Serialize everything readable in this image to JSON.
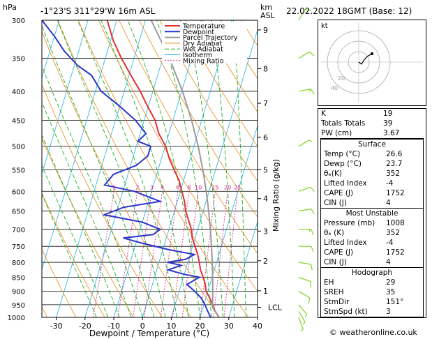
{
  "header": {
    "hpa_label": "hPa",
    "location": "-1°23'S  311°29'W  16m  ASL",
    "km_label": "km",
    "asl_label": "ASL",
    "datetime": "22.02.2022  18GMT  (Base: 12)"
  },
  "chart_data": {
    "type": "line",
    "xlabel": "Dewpoint / Temperature (°C)",
    "ylabel": "hPa",
    "mixing_ratio_label": "Mixing Ratio (g/kg)",
    "xlim": [
      -35,
      40
    ],
    "ylim": [
      1000,
      300
    ],
    "x_ticks": [
      -30,
      -20,
      -10,
      0,
      10,
      20,
      30,
      40
    ],
    "pressure_levels": [
      300,
      350,
      400,
      450,
      500,
      550,
      600,
      650,
      700,
      750,
      800,
      850,
      900,
      950,
      1000
    ],
    "km_ticks": [
      {
        "label": "9",
        "p": 312
      },
      {
        "label": "8",
        "p": 365
      },
      {
        "label": "7",
        "p": 420
      },
      {
        "label": "6",
        "p": 482
      },
      {
        "label": "5",
        "p": 550
      },
      {
        "label": "4",
        "p": 618
      },
      {
        "label": "3",
        "p": 705
      },
      {
        "label": "2",
        "p": 795
      },
      {
        "label": "1",
        "p": 898
      },
      {
        "label": "LCL",
        "p": 960
      }
    ],
    "mixing_ratio_values": [
      "1",
      "2",
      "3",
      "4",
      "6",
      "8",
      "10",
      "15",
      "20",
      "25"
    ],
    "mixing_ratio_g": [
      1,
      2,
      3,
      4,
      6,
      8,
      10,
      15,
      20,
      25
    ],
    "legend": [
      "Temperature",
      "Dewpoint",
      "Parcel Trajectory",
      "Dry Adiabat",
      "Wet Adiabat",
      "Isotherm",
      "Mixing Ratio"
    ],
    "legend_colors": [
      "#e53030",
      "#2a35cc",
      "#9a9a9a",
      "#e8891c",
      "#1fae1f",
      "#20b0e0",
      "#d0208a"
    ],
    "series": [
      {
        "name": "Temperature",
        "color": "#e53030",
        "points": [
          [
            1000,
            26.6
          ],
          [
            975,
            24.6
          ],
          [
            950,
            23
          ],
          [
            925,
            21.4
          ],
          [
            900,
            19.4
          ],
          [
            875,
            18.4
          ],
          [
            850,
            16.9
          ],
          [
            825,
            15.2
          ],
          [
            800,
            14
          ],
          [
            775,
            12.6
          ],
          [
            750,
            10.9
          ],
          [
            725,
            9
          ],
          [
            700,
            7.8
          ],
          [
            675,
            5.9
          ],
          [
            650,
            3.9
          ],
          [
            625,
            2.5
          ],
          [
            600,
            0.5
          ],
          [
            575,
            -1.5
          ],
          [
            550,
            -4.4
          ],
          [
            525,
            -7.3
          ],
          [
            500,
            -9.8
          ],
          [
            475,
            -13.5
          ],
          [
            450,
            -16.2
          ],
          [
            425,
            -20.3
          ],
          [
            400,
            -24.4
          ],
          [
            375,
            -29.3
          ],
          [
            350,
            -34.4
          ],
          [
            325,
            -39.2
          ],
          [
            300,
            -43.3
          ]
        ]
      },
      {
        "name": "Dewpoint",
        "color": "#2a35cc",
        "points": [
          [
            1000,
            23.7
          ],
          [
            975,
            22
          ],
          [
            950,
            20.4
          ],
          [
            925,
            18.4
          ],
          [
            900,
            15.5
          ],
          [
            875,
            12
          ],
          [
            850,
            15.6
          ],
          [
            840,
            10
          ],
          [
            825,
            4
          ],
          [
            810,
            8
          ],
          [
            800,
            3
          ],
          [
            790,
            9
          ],
          [
            775,
            11.5
          ],
          [
            760,
            2
          ],
          [
            740,
            -8
          ],
          [
            725,
            -15
          ],
          [
            715,
            -5
          ],
          [
            700,
            -3
          ],
          [
            680,
            -10
          ],
          [
            660,
            -24
          ],
          [
            640,
            -18
          ],
          [
            625,
            -6
          ],
          [
            600,
            -16
          ],
          [
            585,
            -27
          ],
          [
            560,
            -25
          ],
          [
            540,
            -18
          ],
          [
            520,
            -15
          ],
          [
            500,
            -15
          ],
          [
            490,
            -20
          ],
          [
            475,
            -18
          ],
          [
            450,
            -23
          ],
          [
            425,
            -30
          ],
          [
            400,
            -38
          ],
          [
            390,
            -40
          ],
          [
            375,
            -43
          ],
          [
            360,
            -49
          ],
          [
            340,
            -55
          ],
          [
            320,
            -60
          ],
          [
            300,
            -66
          ]
        ]
      },
      {
        "name": "Parcel Trajectory",
        "color": "#9a9a9a",
        "points": [
          [
            1000,
            26.6
          ],
          [
            960,
            23.3
          ],
          [
            925,
            22.4
          ],
          [
            900,
            21.7
          ],
          [
            850,
            20.2
          ],
          [
            800,
            18.5
          ],
          [
            750,
            16.6
          ],
          [
            700,
            14.4
          ],
          [
            650,
            11.9
          ],
          [
            600,
            9.0
          ],
          [
            550,
            5.6
          ],
          [
            500,
            1.5
          ],
          [
            450,
            -3.5
          ],
          [
            400,
            -9.7
          ],
          [
            350,
            -17.7
          ],
          [
            300,
            -28.0
          ]
        ]
      }
    ],
    "wind_barbs": [
      {
        "p": 1000,
        "dir": 160,
        "kt": 5
      },
      {
        "p": 975,
        "dir": 150,
        "kt": 5
      },
      {
        "p": 950,
        "dir": 140,
        "kt": 5
      },
      {
        "p": 900,
        "dir": 120,
        "kt": 10
      },
      {
        "p": 850,
        "dir": 110,
        "kt": 10
      },
      {
        "p": 800,
        "dir": 100,
        "kt": 10
      },
      {
        "p": 750,
        "dir": 90,
        "kt": 10
      },
      {
        "p": 700,
        "dir": 90,
        "kt": 15
      },
      {
        "p": 650,
        "dir": 80,
        "kt": 10
      },
      {
        "p": 600,
        "dir": 70,
        "kt": 10
      },
      {
        "p": 500,
        "dir": 60,
        "kt": 5
      },
      {
        "p": 400,
        "dir": 80,
        "kt": 15
      },
      {
        "p": 350,
        "dir": 60,
        "kt": 10
      },
      {
        "p": 300,
        "dir": 30,
        "kt": 10
      }
    ]
  },
  "hodograph": {
    "kt_label": "kt",
    "ring_labels": [
      "20",
      "40"
    ]
  },
  "panel": {
    "top_rows": [
      {
        "label": "K",
        "value": "19"
      },
      {
        "label": "Totals Totals",
        "value": "39"
      },
      {
        "label": "PW (cm)",
        "value": "3.67"
      }
    ],
    "surface": {
      "title": "Surface",
      "rows": [
        {
          "label": "Temp (°C)",
          "value": "26.6"
        },
        {
          "label": "Dewp (°C)",
          "value": "23.7"
        },
        {
          "label": "θₑ(K)",
          "value": "352"
        },
        {
          "label": "Lifted Index",
          "value": "-4"
        },
        {
          "label": "CAPE (J)",
          "value": "1752"
        },
        {
          "label": "CIN (J)",
          "value": "4"
        }
      ]
    },
    "most_unstable": {
      "title": "Most Unstable",
      "rows": [
        {
          "label": "Pressure (mb)",
          "value": "1008"
        },
        {
          "label": "θₑ (K)",
          "value": "352"
        },
        {
          "label": "Lifted Index",
          "value": "-4"
        },
        {
          "label": "CAPE (J)",
          "value": "1752"
        },
        {
          "label": "CIN (J)",
          "value": "4"
        }
      ]
    },
    "hodograph_section": {
      "title": "Hodograph",
      "rows": [
        {
          "label": "EH",
          "value": "29"
        },
        {
          "label": "SREH",
          "value": "35"
        },
        {
          "label": "StmDir",
          "value": "151°"
        },
        {
          "label": "StmSpd (kt)",
          "value": "3"
        }
      ]
    }
  },
  "credit": "© weatheronline.co.uk"
}
